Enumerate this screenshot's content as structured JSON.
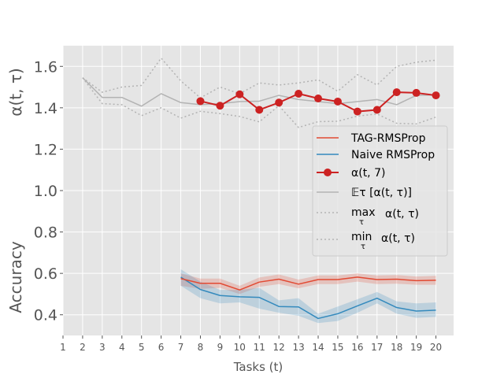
{
  "chart_data": {
    "type": "line",
    "xlabel": "Tasks (t)",
    "ylabel_top": "α(t, τ)",
    "ylabel_bottom": "Accuracy",
    "xlim": [
      1,
      20.9
    ],
    "ylim": [
      0.3,
      1.7
    ],
    "x_ticks": [
      1,
      2,
      3,
      4,
      5,
      6,
      7,
      8,
      9,
      10,
      11,
      12,
      13,
      14,
      15,
      16,
      17,
      18,
      19,
      20
    ],
    "y_ticks": [
      0.4,
      0.6,
      0.8,
      1.0,
      1.2,
      1.4,
      1.6
    ],
    "y_tick_labels": [
      "0.4",
      "0.6",
      "0.8",
      "1.0",
      "1.2",
      "1.4",
      "1.6"
    ],
    "grid": true,
    "legend_position": "center-right",
    "colors": {
      "tag": "#e24a33",
      "naive": "#348abd",
      "alpha7": "#cc2222",
      "gray": "#b3b3b3",
      "background": "#e5e5e5"
    },
    "series": [
      {
        "key": "tag",
        "name": "TAG-RMSProp",
        "x": [
          7,
          8,
          9,
          10,
          11,
          12,
          13,
          14,
          15,
          16,
          17,
          18,
          19,
          20
        ],
        "values": [
          0.575,
          0.552,
          0.552,
          0.52,
          0.558,
          0.572,
          0.548,
          0.57,
          0.57,
          0.582,
          0.57,
          0.572,
          0.565,
          0.567
        ],
        "lower": [
          0.54,
          0.525,
          0.53,
          0.5,
          0.535,
          0.548,
          0.528,
          0.548,
          0.548,
          0.56,
          0.548,
          0.55,
          0.545,
          0.545
        ],
        "upper": [
          0.6,
          0.575,
          0.575,
          0.54,
          0.58,
          0.595,
          0.57,
          0.59,
          0.59,
          0.6,
          0.59,
          0.592,
          0.585,
          0.588
        ]
      },
      {
        "key": "naive",
        "name": "Naive RMSProp",
        "x": [
          7,
          8,
          9,
          10,
          11,
          12,
          13,
          14,
          15,
          16,
          17,
          18,
          19,
          20
        ],
        "values": [
          0.582,
          0.522,
          0.493,
          0.487,
          0.484,
          0.44,
          0.438,
          0.382,
          0.405,
          0.443,
          0.48,
          0.435,
          0.418,
          0.422
        ],
        "lower": [
          0.54,
          0.48,
          0.455,
          0.46,
          0.43,
          0.41,
          0.395,
          0.36,
          0.37,
          0.41,
          0.455,
          0.405,
          0.385,
          0.39
        ],
        "upper": [
          0.62,
          0.56,
          0.52,
          0.52,
          0.53,
          0.47,
          0.48,
          0.405,
          0.44,
          0.475,
          0.51,
          0.465,
          0.455,
          0.46
        ]
      },
      {
        "key": "alpha7",
        "name": "α(t, 7)",
        "x": [
          8,
          9,
          10,
          11,
          12,
          13,
          14,
          15,
          16,
          17,
          18,
          19,
          20
        ],
        "values": [
          1.432,
          1.41,
          1.465,
          1.39,
          1.425,
          1.468,
          1.445,
          1.43,
          1.382,
          1.39,
          1.475,
          1.472,
          1.46
        ]
      },
      {
        "key": "mean",
        "name": "𝔼τ  [α(t, τ)]",
        "x": [
          2,
          3,
          4,
          5,
          6,
          7,
          8,
          9,
          10,
          11,
          12,
          13,
          14,
          15,
          16,
          17,
          18,
          19,
          20
        ],
        "values": [
          1.545,
          1.45,
          1.45,
          1.408,
          1.468,
          1.425,
          1.415,
          1.42,
          1.43,
          1.432,
          1.46,
          1.44,
          1.43,
          1.42,
          1.43,
          1.44,
          1.415,
          1.46,
          1.462
        ]
      },
      {
        "key": "max",
        "name": "max α(t, τ)",
        "name_main": "max",
        "name_sub": "τ",
        "name_rest": "α(t, τ)",
        "x": [
          2,
          3,
          4,
          5,
          6,
          7,
          8,
          9,
          10,
          11,
          12,
          13,
          14,
          15,
          16,
          17,
          18,
          19,
          20
        ],
        "values": [
          1.545,
          1.475,
          1.5,
          1.508,
          1.64,
          1.53,
          1.448,
          1.5,
          1.468,
          1.52,
          1.51,
          1.52,
          1.535,
          1.48,
          1.56,
          1.51,
          1.6,
          1.62,
          1.63
        ]
      },
      {
        "key": "min",
        "name": "min α(t, τ)",
        "name_main": "min",
        "name_sub": "τ",
        "name_rest": "α(t, τ)",
        "x": [
          2,
          3,
          4,
          5,
          6,
          7,
          8,
          9,
          10,
          11,
          12,
          13,
          14,
          15,
          16,
          17,
          18,
          19,
          20
        ],
        "values": [
          1.545,
          1.42,
          1.415,
          1.362,
          1.4,
          1.35,
          1.383,
          1.372,
          1.358,
          1.332,
          1.41,
          1.305,
          1.333,
          1.335,
          1.36,
          1.37,
          1.325,
          1.322,
          1.355
        ]
      }
    ]
  }
}
